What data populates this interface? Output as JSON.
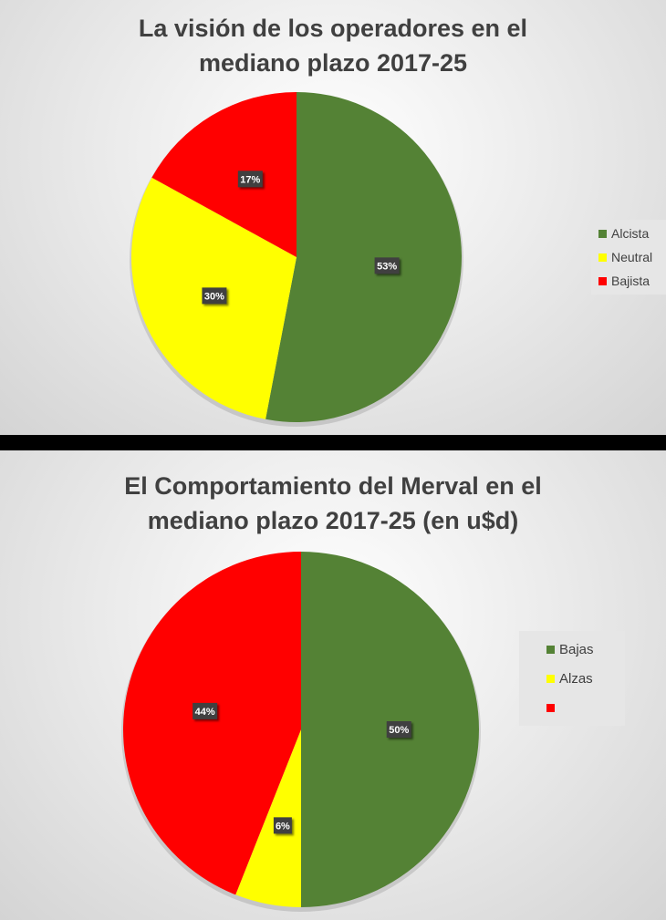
{
  "chart_data": [
    {
      "type": "pie",
      "title": "La visión de los operadores en el mediano plazo 2017-25",
      "title_lines": [
        "La visión de los operadores en el",
        "mediano plazo 2017-25"
      ],
      "categories": [
        "Alcista",
        "Neutral",
        "Bajista"
      ],
      "values": [
        53,
        30,
        17
      ],
      "data_labels": [
        "53%",
        "30%",
        "17%"
      ],
      "colors": [
        "#548235",
        "#ffff00",
        "#ff0000"
      ],
      "legend": "right"
    },
    {
      "type": "pie",
      "title": "El Comportamiento del Merval en el mediano plazo 2017-25 (en u$d)",
      "title_lines": [
        "El Comportamiento del Merval en el",
        "mediano plazo 2017-25 (en u$d)"
      ],
      "categories": [
        "Bajas",
        "Alzas",
        ""
      ],
      "values": [
        50,
        6,
        44
      ],
      "data_labels": [
        "50%",
        "6%",
        "44%"
      ],
      "colors": [
        "#548235",
        "#ffff00",
        "#ff0000"
      ],
      "legend": "right"
    }
  ]
}
